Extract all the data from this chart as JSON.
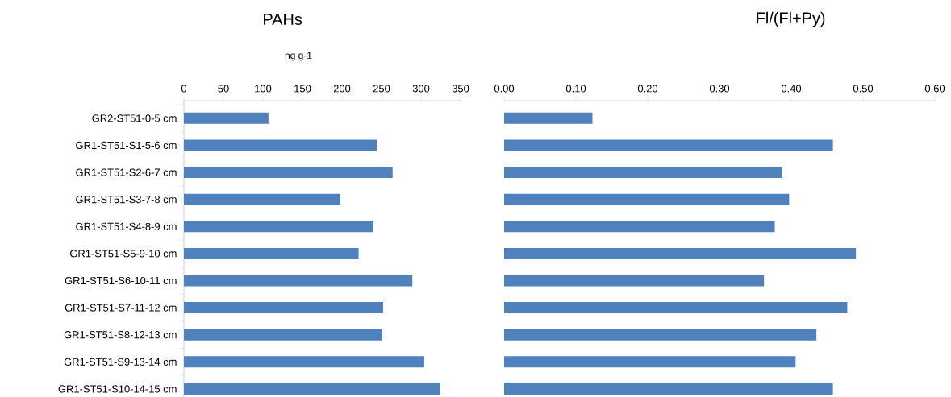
{
  "chart_data": [
    {
      "type": "bar",
      "orientation": "horizontal",
      "title": "PAHs",
      "xlabel": "ng g-1",
      "categories": [
        "GR2-ST51-0-5  cm",
        "GR1-ST51-S1-5-6  cm",
        "GR1-ST51-S2-6-7  cm",
        "GR1-ST51-S3-7-8  cm",
        "GR1-ST51-S4-8-9  cm",
        "GR1-ST51-S5-9-10  cm",
        "GR1-ST51-S6-10-11  cm",
        "GR1-ST51-S7-11-12  cm",
        "GR1-ST51-S8-12-13  cm",
        "GR1-ST51-S9-13-14  cm",
        "GR1-ST51-S10-14-15  cm"
      ],
      "values": [
        107,
        244,
        264,
        198,
        239,
        221,
        289,
        252,
        251,
        304,
        324
      ],
      "color": "#4f81bd",
      "xlim": [
        0,
        350
      ],
      "xticks": [
        0,
        50,
        100,
        150,
        200,
        250,
        300,
        350
      ]
    },
    {
      "type": "bar",
      "orientation": "horizontal",
      "title": "Fl/(Fl+Py)",
      "categories": [
        null,
        null,
        null,
        null,
        null,
        null,
        null,
        null,
        null,
        null,
        null
      ],
      "values": [
        0.123,
        0.458,
        0.387,
        0.397,
        0.377,
        0.49,
        0.362,
        0.478,
        0.435,
        0.406,
        0.458
      ],
      "color": "#4f81bd",
      "xlim": [
        0,
        0.6
      ],
      "xticks": [
        {
          "value": 0,
          "label": "0.00"
        },
        {
          "value": 0.1,
          "label": "0.10"
        },
        {
          "value": 0.2,
          "label": "0.20"
        },
        {
          "value": 0.3,
          "label": "0.30"
        },
        {
          "value": 0.4,
          "label": "0.40"
        },
        {
          "value": 0.5,
          "label": "0.50"
        },
        {
          "value": 0.6,
          "label": "0.60"
        }
      ],
      "tick_labels": "x"
    }
  ]
}
